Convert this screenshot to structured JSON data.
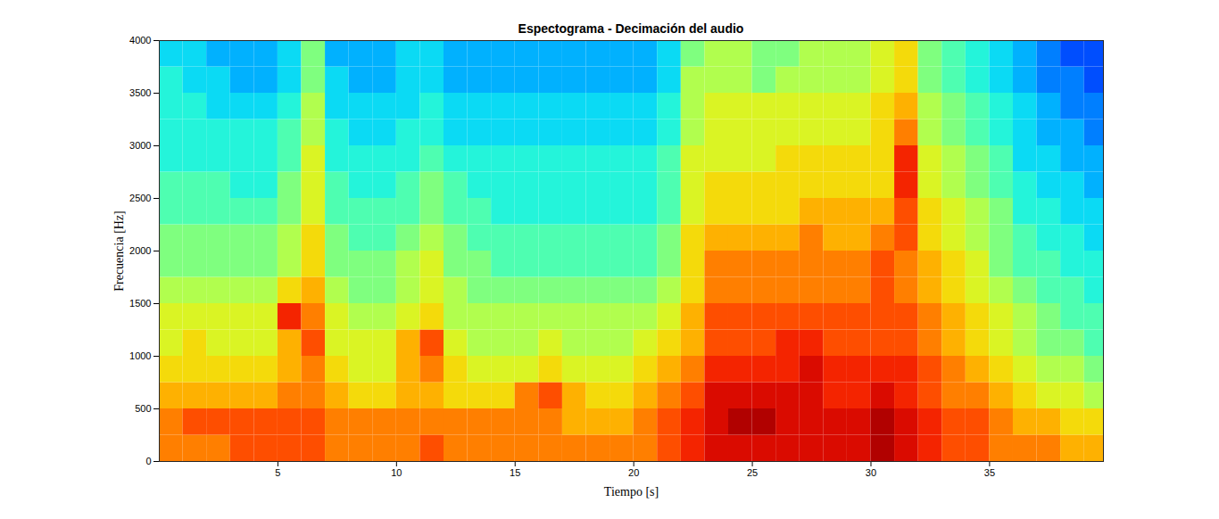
{
  "chart_data": {
    "type": "heatmap",
    "title": "Espectograma - Decimación del audio",
    "xlabel": "Tiempo [s]",
    "ylabel": "Frecuencia [Hz]",
    "xlim": [
      0,
      39.8
    ],
    "xticks": [
      5,
      10,
      15,
      20,
      25,
      30,
      35
    ],
    "ylim": [
      0,
      4000
    ],
    "yticks": [
      0,
      500,
      1000,
      1500,
      2000,
      2500,
      3000,
      3500,
      4000
    ],
    "color": "jet",
    "zlim": [
      0,
      10
    ],
    "x_bins": [
      0,
      1,
      2,
      3,
      4,
      5,
      6,
      7,
      8,
      9,
      10,
      11,
      12,
      13,
      14,
      15,
      16,
      17,
      18,
      19,
      20,
      21,
      22,
      23,
      24,
      25,
      26,
      27,
      28,
      29,
      30,
      31,
      32,
      33,
      34,
      35,
      36,
      37,
      38,
      39,
      40
    ],
    "y_bins": [
      0,
      250,
      500,
      750,
      1000,
      1250,
      1500,
      1750,
      2000,
      2250,
      2500,
      2750,
      3000,
      3250,
      3500,
      3750,
      4000
    ],
    "z": [
      [
        7.5,
        7.5,
        7.5,
        8,
        8,
        8,
        8,
        7.5,
        7.5,
        7.5,
        7.5,
        8,
        7.5,
        7.5,
        7.5,
        7.5,
        7.5,
        7.5,
        7.5,
        7.5,
        7.5,
        8,
        8.5,
        9,
        9,
        9,
        9,
        9,
        9,
        9,
        9.5,
        9,
        8.5,
        8,
        8,
        7.5,
        7.5,
        7.5,
        7,
        7
      ],
      [
        7.5,
        8,
        8,
        8,
        8,
        8,
        8,
        7.5,
        7.5,
        7.5,
        7.5,
        7.5,
        7.5,
        7.5,
        7.5,
        7.5,
        7.5,
        7,
        7,
        7,
        7.5,
        8,
        8.5,
        9,
        9.5,
        9.5,
        9,
        9,
        9,
        9,
        9.5,
        9,
        8.5,
        8,
        8,
        7.5,
        7,
        7,
        6.5,
        6.5
      ],
      [
        7,
        7,
        7,
        7,
        7,
        7.5,
        7.5,
        7,
        6.5,
        6.5,
        7,
        7,
        6.5,
        6.5,
        6.5,
        7.5,
        8,
        7,
        6.5,
        6.5,
        7,
        7.5,
        8,
        9,
        9,
        9,
        9,
        9,
        8.5,
        8.5,
        9,
        8.5,
        8,
        7.5,
        7.5,
        7,
        6.5,
        6,
        6,
        5.5
      ],
      [
        6.5,
        6.5,
        6.5,
        6.5,
        6.5,
        7,
        7.5,
        6.5,
        6,
        6,
        7,
        7.5,
        6.5,
        6,
        6,
        6,
        6.5,
        6,
        6,
        6,
        6.5,
        7,
        7.5,
        8.5,
        8.5,
        8.5,
        8.5,
        9,
        8.5,
        8.5,
        8.5,
        8.5,
        8,
        7.5,
        7,
        6.5,
        6,
        5.5,
        5.5,
        5
      ],
      [
        6,
        6.5,
        6,
        6,
        6,
        7,
        8,
        6,
        6,
        6,
        7,
        8,
        6,
        5.5,
        5.5,
        5.5,
        6,
        5.5,
        5.5,
        5.5,
        6,
        6.5,
        7,
        8,
        8,
        8,
        8.5,
        8.5,
        8,
        8,
        8,
        8,
        7.5,
        7,
        6.5,
        6,
        5.5,
        5,
        5,
        4.5
      ],
      [
        6,
        6,
        6,
        6,
        6,
        8.5,
        7.5,
        6,
        5.5,
        5.5,
        6,
        6.5,
        5.5,
        5.5,
        5.5,
        5.5,
        5.5,
        5.5,
        5.5,
        5.5,
        5.5,
        6,
        7,
        8,
        8,
        8,
        8,
        8,
        8,
        8,
        8,
        8,
        7.5,
        7,
        6.5,
        6,
        5.5,
        5,
        4.5,
        4.5
      ],
      [
        5.5,
        5.5,
        5.5,
        5.5,
        5.5,
        6.5,
        7,
        5.5,
        5,
        5,
        5.5,
        6,
        5.5,
        5,
        5,
        5,
        5,
        5,
        5,
        5,
        5,
        5.5,
        6.5,
        7.5,
        7.5,
        7.5,
        7.5,
        7.5,
        7.5,
        7.5,
        8,
        7.5,
        7,
        6.5,
        6,
        5.5,
        5,
        4.5,
        4.5,
        4
      ],
      [
        5,
        5,
        5,
        5,
        5,
        5.5,
        6.5,
        5,
        5,
        5,
        5.5,
        6,
        5,
        5,
        4.5,
        4.5,
        4.5,
        4.5,
        4.5,
        4.5,
        4.5,
        5,
        6.5,
        7.5,
        7.5,
        7.5,
        7.5,
        7.5,
        7.5,
        7.5,
        8,
        7.5,
        7,
        6.5,
        6,
        5,
        4.5,
        4.5,
        4,
        4
      ],
      [
        5,
        5,
        5,
        5,
        5,
        5.5,
        6.5,
        5,
        4.5,
        4.5,
        5,
        5.5,
        5,
        4.5,
        4.5,
        4.5,
        4.5,
        4.5,
        4.5,
        4.5,
        4.5,
        5,
        6.5,
        7,
        7,
        7,
        7,
        7.5,
        7,
        7,
        7.5,
        8,
        6.5,
        6,
        5.5,
        5,
        4.5,
        4,
        4,
        3.5
      ],
      [
        4.5,
        4.5,
        4.5,
        4.5,
        4.5,
        5,
        6,
        4.5,
        4.5,
        4.5,
        4.5,
        5,
        4.5,
        4.5,
        4,
        4,
        4,
        4,
        4,
        4,
        4,
        4.5,
        6,
        6.5,
        6.5,
        6.5,
        6.5,
        7,
        7,
        7,
        7,
        8,
        6.5,
        6,
        5.5,
        5,
        4,
        4,
        3.5,
        3.5
      ],
      [
        4.5,
        4.5,
        4.5,
        4,
        4,
        5,
        6,
        4.5,
        4,
        4,
        4.5,
        5,
        4.5,
        4,
        4,
        4,
        4,
        4,
        4,
        4,
        4,
        4.5,
        6,
        6.5,
        6.5,
        6.5,
        6.5,
        6.5,
        6.5,
        6.5,
        6.5,
        8.5,
        6,
        5.5,
        5,
        4.5,
        4,
        3.5,
        3.5,
        3
      ],
      [
        4,
        4,
        4,
        4,
        4,
        4.5,
        6,
        4,
        4,
        4,
        4,
        4.5,
        4,
        4,
        4,
        4,
        4,
        4,
        4,
        4,
        4,
        4.5,
        6,
        6,
        6,
        6,
        6.5,
        6.5,
        6.5,
        6.5,
        6.5,
        8.5,
        6,
        5.5,
        5,
        4.5,
        3.5,
        3.5,
        3,
        3
      ],
      [
        4,
        4,
        4,
        4,
        4,
        4.5,
        5.5,
        4,
        3.5,
        3.5,
        4,
        4,
        3.5,
        3.5,
        3.5,
        3.5,
        3.5,
        3.5,
        3.5,
        3.5,
        3.5,
        4,
        5.5,
        6,
        6,
        6,
        6,
        6,
        6,
        6,
        6.5,
        7.5,
        5.5,
        5,
        4.5,
        4,
        3.5,
        3,
        3,
        2.5
      ],
      [
        4,
        4,
        3.5,
        3.5,
        3.5,
        4,
        5.5,
        3.5,
        3.5,
        3.5,
        3.5,
        4,
        3.5,
        3.5,
        3.5,
        3.5,
        3.5,
        3.5,
        3.5,
        3.5,
        3.5,
        4,
        5.5,
        6,
        6,
        6,
        6,
        6,
        6,
        6,
        6.5,
        7,
        5.5,
        5,
        4.5,
        4,
        3.5,
        3,
        2.5,
        2.5
      ],
      [
        4,
        3.5,
        3.5,
        3,
        3,
        3.5,
        5,
        3.5,
        3,
        3,
        3.5,
        3.5,
        3,
        3,
        3,
        3,
        3,
        3,
        3,
        3,
        3,
        3.5,
        5.5,
        5.5,
        5.5,
        5,
        5.5,
        5.5,
        5.5,
        5.5,
        6,
        6.5,
        5,
        4.5,
        4,
        3.5,
        3,
        2.5,
        2.5,
        2
      ],
      [
        3.5,
        3.5,
        3,
        3,
        3,
        3.5,
        5,
        3,
        3,
        3,
        3.5,
        3.5,
        3,
        3,
        3,
        3,
        3,
        3,
        3,
        3,
        3,
        3.5,
        5,
        5.5,
        5.5,
        5,
        5,
        5.5,
        5.5,
        5.5,
        6,
        6.5,
        5,
        4.5,
        4,
        3.5,
        3,
        2.5,
        2,
        2
      ]
    ]
  }
}
